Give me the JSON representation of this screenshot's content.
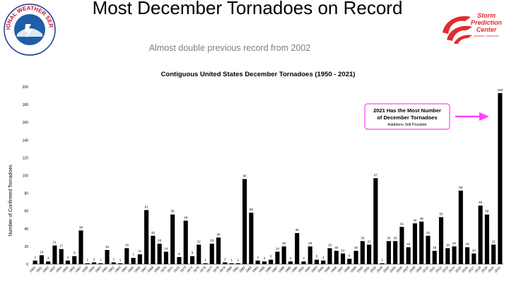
{
  "slide": {
    "title": "Most December Tornadoes on Record",
    "subtitle": "Almost double previous record from 2002"
  },
  "logos": {
    "nws": {
      "text": "NATIONAL WEATHER SERVICE",
      "icon": "nws-logo-icon"
    },
    "spc": {
      "line1": "Storm",
      "line2": "Prediction",
      "line3": "Center",
      "line4": "Norman, Oklahoma",
      "icon": "spc-logo-icon"
    }
  },
  "colors": {
    "bar": "#000000",
    "callout_border": "#ff40ff",
    "arrow": "#ff40ff",
    "title": "#000000",
    "subtitle": "#7f7f7f"
  },
  "chart_data": {
    "type": "bar",
    "title": "Contiguous United States December Tornadoes (1950 - 2021)",
    "xlabel": "",
    "ylabel": "Number of Confirmed Tornadoes",
    "ylim": [
      0,
      200
    ],
    "yticks": [
      0,
      20,
      40,
      60,
      80,
      100,
      120,
      140,
      160,
      180,
      200
    ],
    "grid": false,
    "categories": [
      "1950",
      "1951",
      "1952",
      "1953",
      "1954",
      "1955",
      "1956",
      "1957",
      "1958",
      "1959",
      "1960",
      "1961",
      "1962",
      "1963",
      "1964",
      "1965",
      "1966",
      "1967",
      "1968",
      "1969",
      "1970",
      "1971",
      "1972",
      "1973",
      "1974",
      "1975",
      "1976",
      "1977",
      "1978",
      "1979",
      "1980",
      "1981",
      "1982",
      "1983",
      "1984",
      "1985",
      "1986",
      "1987",
      "1988",
      "1989",
      "1990",
      "1991",
      "1992",
      "1993",
      "1994",
      "1995",
      "1996",
      "1997",
      "1998",
      "1999",
      "2000",
      "2001",
      "2002",
      "2003",
      "2004",
      "2005",
      "2006",
      "2007",
      "2008",
      "2009",
      "2010",
      "2011",
      "2012",
      "2013",
      "2014",
      "2015",
      "2016",
      "2017",
      "2018",
      "2019",
      "2020",
      "2021"
    ],
    "values": [
      4,
      10,
      3,
      21,
      17,
      4,
      9,
      38,
      1,
      2,
      1,
      16,
      2,
      1,
      18,
      7,
      11,
      61,
      32,
      23,
      14,
      56,
      8,
      49,
      9,
      22,
      1,
      23,
      30,
      2,
      1,
      1,
      96,
      58,
      4,
      3,
      5,
      14,
      20,
      3,
      35,
      3,
      20,
      5,
      4,
      18,
      15,
      12,
      6,
      15,
      26,
      22,
      97,
      1,
      26,
      26,
      42,
      19,
      46,
      48,
      32,
      15,
      53,
      18,
      20,
      83,
      19,
      12,
      66,
      56,
      22,
      193
    ],
    "data_labels": [
      "4",
      "10",
      "3",
      "21",
      "17",
      "4",
      "9",
      "38",
      "1",
      "2",
      "1",
      "16",
      "2",
      "1",
      "18",
      "7",
      "11",
      "61",
      "32",
      "23",
      "14",
      "56",
      "8",
      "49",
      "9",
      "22",
      "1",
      "23",
      "30",
      "2",
      "1",
      "1",
      "96",
      "58",
      "4",
      "3",
      "5",
      "14",
      "20",
      "3",
      "35",
      "3",
      "20",
      "5",
      "4",
      "18",
      "15",
      "12",
      "6",
      "15",
      "26",
      "22",
      "97",
      "1",
      "26",
      "26",
      "42",
      "19",
      "46",
      "48",
      "32",
      "15",
      "53",
      "18",
      "20",
      "83",
      "19",
      "12",
      "66",
      "56",
      "22",
      "193"
    ],
    "annotation": {
      "line1": "2021 Has the Most Number",
      "line2": "of December Tornadoes",
      "line3": "Additions Still Possible",
      "points_to": "2021"
    }
  }
}
